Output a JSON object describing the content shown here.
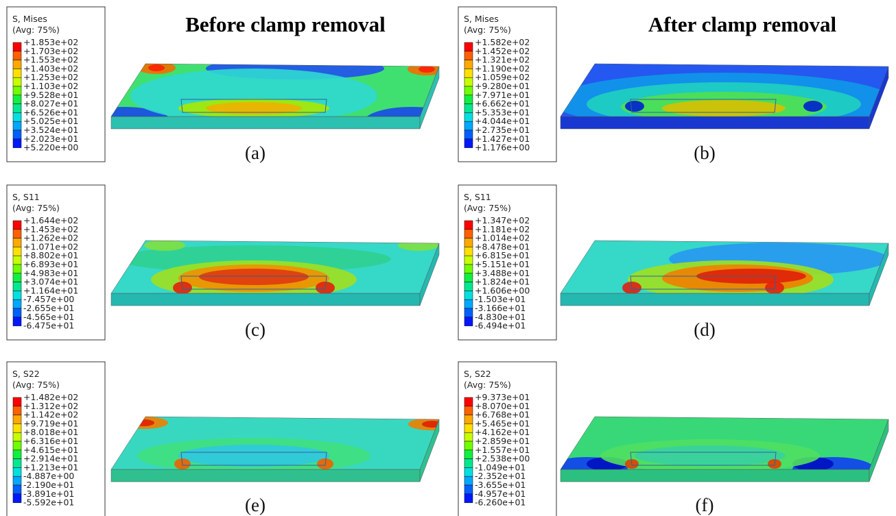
{
  "column_titles": [
    "Before clamp removal",
    "After clamp removal"
  ],
  "panels": [
    {
      "caption": "(a)",
      "legend": {
        "title": "S, Mises",
        "subtitle": "(Avg: 75%)",
        "labels": [
          "+1.853e+02",
          "+1.703e+02",
          "+1.553e+02",
          "+1.403e+02",
          "+1.253e+02",
          "+1.103e+02",
          "+9.528e+01",
          "+8.027e+01",
          "+6.526e+01",
          "+5.025e+01",
          "+3.524e+01",
          "+2.023e+01",
          "+5.220e+00"
        ]
      }
    },
    {
      "caption": "(b)",
      "legend": {
        "title": "S, Mises",
        "subtitle": "(Avg: 75%)",
        "labels": [
          "+1.582e+02",
          "+1.452e+02",
          "+1.321e+02",
          "+1.190e+02",
          "+1.059e+02",
          "+9.280e+01",
          "+7.971e+01",
          "+6.662e+01",
          "+5.353e+01",
          "+4.044e+01",
          "+2.735e+01",
          "+1.427e+01",
          "+1.176e+00"
        ]
      }
    },
    {
      "caption": "(c)",
      "legend": {
        "title": "S, S11",
        "subtitle": "(Avg: 75%)",
        "labels": [
          "+1.644e+02",
          "+1.453e+02",
          "+1.262e+02",
          "+1.071e+02",
          "+8.802e+01",
          "+6.893e+01",
          "+4.983e+01",
          "+3.074e+01",
          "+1.164e+01",
          "-7.457e+00",
          "-2.655e+01",
          "-4.565e+01",
          "-6.475e+01"
        ]
      }
    },
    {
      "caption": "(d)",
      "legend": {
        "title": "S, S11",
        "subtitle": "(Avg: 75%)",
        "labels": [
          "+1.347e+02",
          "+1.181e+02",
          "+1.014e+02",
          "+8.478e+01",
          "+6.815e+01",
          "+5.151e+01",
          "+3.488e+01",
          "+1.824e+01",
          "+1.606e+00",
          "-1.503e+01",
          "-3.166e+01",
          "-4.830e+01",
          "-6.494e+01"
        ]
      }
    },
    {
      "caption": "(e)",
      "legend": {
        "title": "S, S22",
        "subtitle": "(Avg: 75%)",
        "labels": [
          "+1.482e+02",
          "+1.312e+02",
          "+1.142e+02",
          "+9.719e+01",
          "+8.018e+01",
          "+6.316e+01",
          "+4.615e+01",
          "+2.914e+01",
          "+1.213e+01",
          "-4.887e+00",
          "-2.190e+01",
          "-3.891e+01",
          "-5.592e+01"
        ]
      }
    },
    {
      "caption": "(f)",
      "legend": {
        "title": "S, S22",
        "subtitle": "(Avg: 75%)",
        "labels": [
          "+9.373e+01",
          "+8.070e+01",
          "+6.768e+01",
          "+5.465e+01",
          "+4.162e+01",
          "+2.859e+01",
          "+1.557e+01",
          "+2.538e+00",
          "-1.049e+01",
          "-2.352e+01",
          "-3.655e+01",
          "-4.957e+01",
          "-6.260e+01"
        ]
      }
    }
  ]
}
